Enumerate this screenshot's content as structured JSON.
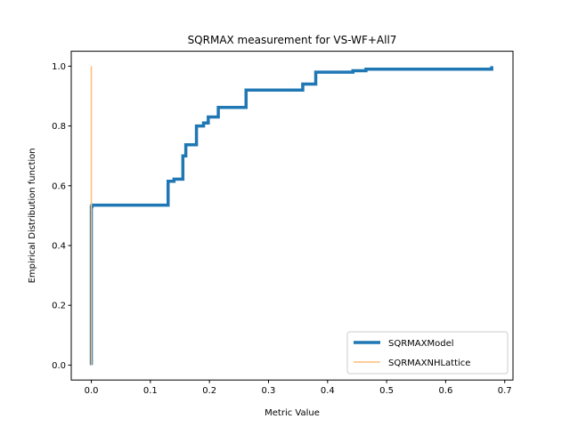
{
  "chart_data": {
    "type": "line",
    "title": "SQRMAX measurement for VS-WF+All7",
    "xlabel": "Metric Value",
    "ylabel": "Empirical Distribution function",
    "xlim": [
      -0.034,
      0.714
    ],
    "ylim": [
      -0.05,
      1.05
    ],
    "xticks": [
      0.0,
      0.1,
      0.2,
      0.3,
      0.4,
      0.5,
      0.6,
      0.7
    ],
    "xtick_labels": [
      "0.0",
      "0.1",
      "0.2",
      "0.3",
      "0.4",
      "0.5",
      "0.6",
      "0.7"
    ],
    "yticks": [
      0.0,
      0.2,
      0.4,
      0.6,
      0.8,
      1.0
    ],
    "ytick_labels": [
      "0.0",
      "0.2",
      "0.4",
      "0.6",
      "0.8",
      "1.0"
    ],
    "legend_position": "lower right",
    "grid": false,
    "series": [
      {
        "name": "SQRMAXModel",
        "color": "#1f77b4",
        "style": "thick",
        "x": [
          0.0,
          0.0,
          0.001,
          0.001,
          0.13,
          0.13,
          0.14,
          0.14,
          0.155,
          0.155,
          0.16,
          0.16,
          0.178,
          0.178,
          0.19,
          0.19,
          0.198,
          0.198,
          0.215,
          0.215,
          0.262,
          0.262,
          0.358,
          0.358,
          0.38,
          0.38,
          0.443,
          0.443,
          0.465,
          0.465,
          0.678,
          0.678
        ],
        "y": [
          0.0,
          0.53,
          0.53,
          0.535,
          0.535,
          0.615,
          0.615,
          0.622,
          0.622,
          0.7,
          0.7,
          0.737,
          0.737,
          0.8,
          0.8,
          0.81,
          0.81,
          0.83,
          0.83,
          0.862,
          0.862,
          0.92,
          0.92,
          0.94,
          0.94,
          0.98,
          0.98,
          0.985,
          0.985,
          0.99,
          0.99,
          1.0
        ]
      },
      {
        "name": "SQRMAXNHLattice",
        "color": "#ff7f0e",
        "style": "thin",
        "x": [
          0.0,
          0.0
        ],
        "y": [
          0.0,
          1.0
        ]
      }
    ]
  }
}
